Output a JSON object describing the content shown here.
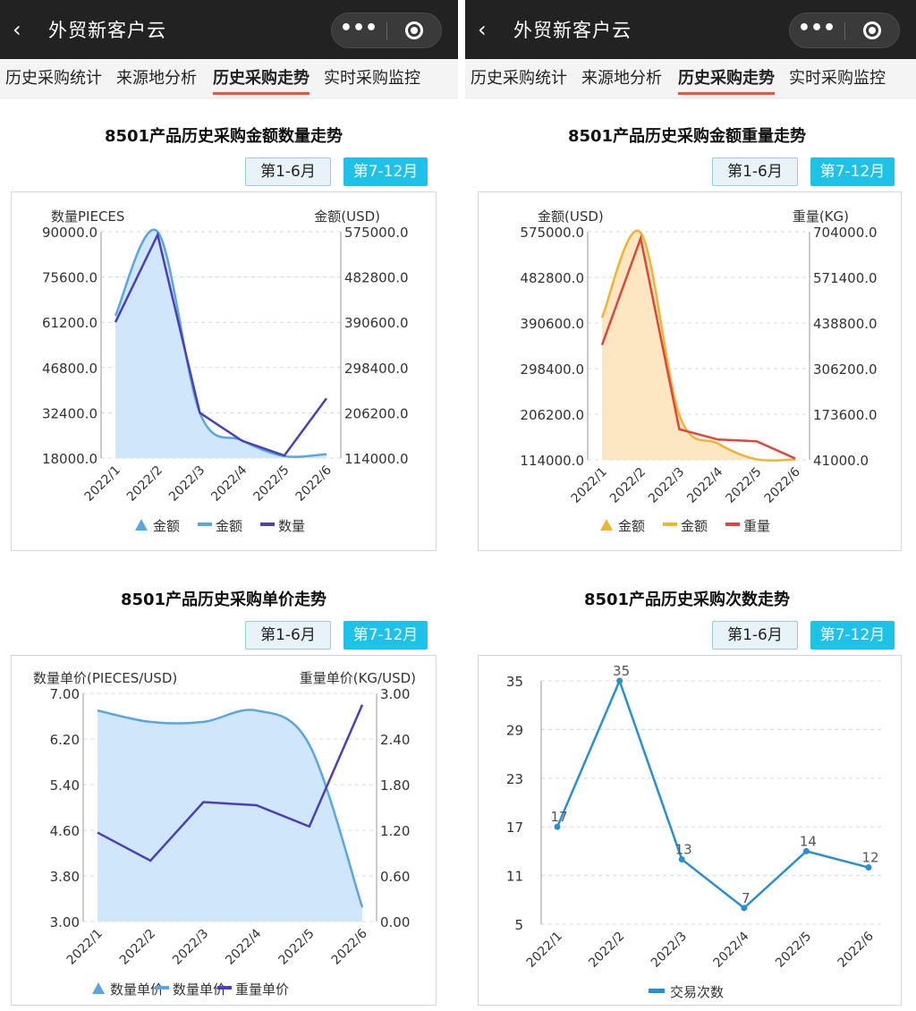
{
  "app": {
    "title": "外贸新客户云",
    "back_icon": "chevron-left-icon",
    "more_icon": "more-dots-icon",
    "close_icon": "target-circle-icon"
  },
  "tabs": [
    "历史采购统计",
    "来源地分析",
    "历史采购走势",
    "实时采购监控"
  ],
  "active_tab": 2,
  "toggles": {
    "first_half": "第1-6月",
    "second_half": "第7-12月"
  },
  "colors": {
    "accent_tab": "#e9543a",
    "toggle_on": "#1ec1e8",
    "blue": "#5aa6e0",
    "purple": "#4b3fb8",
    "orange": "#f0b432",
    "red": "#e0453c"
  },
  "months": [
    "2022/1",
    "2022/2",
    "2022/3",
    "2022/4",
    "2022/5",
    "2022/6"
  ],
  "charts": {
    "qty": {
      "title": "8501产品历史采购金额数量走势",
      "left_axis_title": "数量PIECES",
      "right_axis_title": "金额(USD)",
      "left_ticks": [
        "90000.0",
        "75600.0",
        "61200.0",
        "46800.0",
        "32400.0",
        "18000.0"
      ],
      "right_ticks": [
        "575000.0",
        "482800.0",
        "390600.0",
        "298400.0",
        "206200.0",
        "114000.0"
      ],
      "legend": [
        "金额",
        "金额",
        "数量"
      ]
    },
    "weight": {
      "title": "8501产品历史采购金额重量走势",
      "left_axis_title": "金额(USD)",
      "right_axis_title": "重量(KG)",
      "left_ticks": [
        "575000.0",
        "482800.0",
        "390600.0",
        "298400.0",
        "206200.0",
        "114000.0"
      ],
      "right_ticks": [
        "704000.0",
        "571400.0",
        "438800.0",
        "306200.0",
        "173600.0",
        "41000.0"
      ],
      "legend": [
        "金额",
        "金额",
        "重量"
      ]
    },
    "price": {
      "title": "8501产品历史采购单价走势",
      "left_axis_title": "数量单价(PIECES/USD)",
      "right_axis_title": "重量单价(KG/USD)",
      "left_ticks": [
        "7.00",
        "6.20",
        "5.40",
        "4.60",
        "3.80",
        "3.00"
      ],
      "right_ticks": [
        "3.00",
        "2.40",
        "1.80",
        "1.20",
        "0.60",
        "0.00"
      ],
      "legend": [
        "数量单价",
        "数量单价",
        "重量单价"
      ]
    },
    "count": {
      "title": "8501产品历史采购次数走势",
      "ticks": [
        "35",
        "29",
        "23",
        "17",
        "11",
        "5"
      ],
      "point_labels": [
        "17",
        "35",
        "13",
        "7",
        "14",
        "12"
      ],
      "legend": [
        "交易次数"
      ]
    }
  },
  "chart_data": [
    {
      "type": "area",
      "title": "8501产品历史采购金额数量走势",
      "categories": [
        "2022/1",
        "2022/2",
        "2022/3",
        "2022/4",
        "2022/5",
        "2022/6"
      ],
      "ylabel": "数量PIECES",
      "y2label": "金额(USD)",
      "ylim": [
        18000,
        90000
      ],
      "y2lim": [
        114000,
        575000
      ],
      "series": [
        {
          "name": "金额",
          "axis": "right",
          "kind": "area",
          "values": [
            404000,
            575000,
            206200,
            150000,
            118000,
            122000
          ]
        },
        {
          "name": "数量",
          "axis": "left",
          "kind": "line",
          "values": [
            61200,
            89000,
            32400,
            23500,
            18800,
            37000
          ]
        }
      ],
      "legend": "bottom"
    },
    {
      "type": "area",
      "title": "8501产品历史采购金额重量走势",
      "categories": [
        "2022/1",
        "2022/2",
        "2022/3",
        "2022/4",
        "2022/5",
        "2022/6"
      ],
      "ylabel": "金额(USD)",
      "y2label": "重量(KG)",
      "ylim": [
        114000,
        575000
      ],
      "y2lim": [
        41000,
        704000
      ],
      "series": [
        {
          "name": "金额",
          "axis": "left",
          "kind": "area",
          "values": [
            401000,
            573000,
            205000,
            147000,
            115000,
            115000
          ]
        },
        {
          "name": "重量",
          "axis": "right",
          "kind": "line",
          "values": [
            375000,
            685000,
            130000,
            100000,
            95000,
            45000
          ]
        }
      ],
      "legend": "bottom"
    },
    {
      "type": "area",
      "title": "8501产品历史采购单价走势",
      "categories": [
        "2022/1",
        "2022/2",
        "2022/3",
        "2022/4",
        "2022/5",
        "2022/6"
      ],
      "ylabel": "数量单价(PIECES/USD)",
      "y2label": "重量单价(KG/USD)",
      "ylim": [
        3.0,
        7.0
      ],
      "y2lim": [
        0.0,
        3.0
      ],
      "series": [
        {
          "name": "数量单价",
          "axis": "left",
          "kind": "area",
          "values": [
            6.7,
            6.5,
            6.5,
            6.7,
            6.1,
            3.25
          ]
        },
        {
          "name": "重量单价",
          "axis": "right",
          "kind": "line",
          "values": [
            1.17,
            0.8,
            1.57,
            1.53,
            1.25,
            2.85
          ]
        }
      ],
      "legend": "bottom"
    },
    {
      "type": "line",
      "title": "8501产品历史采购次数走势",
      "categories": [
        "2022/1",
        "2022/2",
        "2022/3",
        "2022/4",
        "2022/5",
        "2022/6"
      ],
      "ylim": [
        5,
        35
      ],
      "series": [
        {
          "name": "交易次数",
          "values": [
            17,
            35,
            13,
            7,
            14,
            12
          ]
        }
      ],
      "legend": "bottom"
    }
  ]
}
